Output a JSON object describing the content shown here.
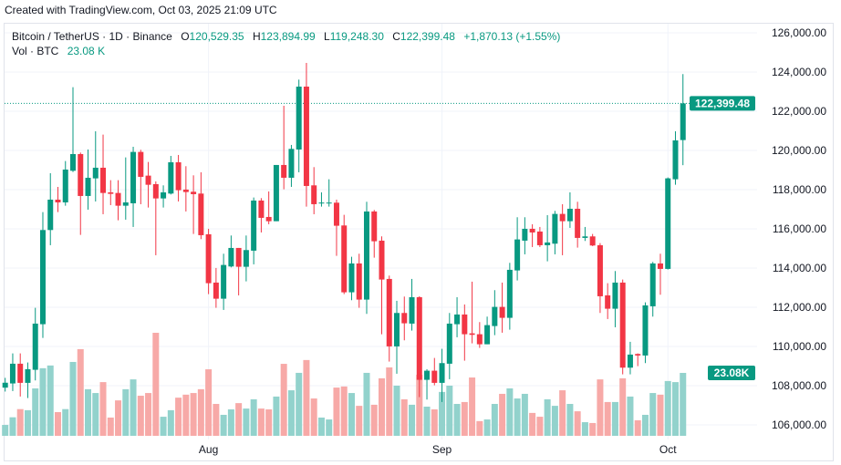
{
  "credit": "Created with TradingView.com, Oct 03, 2025 21:09 UTC",
  "legend": {
    "symbol": "Bitcoin / TetherUS · 1D · Binance",
    "o_label": "O",
    "o": "120,529.35",
    "h_label": "H",
    "h": "123,894.99",
    "l_label": "L",
    "l": "119,248.30",
    "c_label": "C",
    "c": "122,399.48",
    "change": "+1,870.13 (+1.55%)",
    "vol_label": "Vol · BTC",
    "vol": "23.08 K"
  },
  "colors": {
    "up": "#089981",
    "down": "#F23645",
    "up_vol": "#92d2cc",
    "down_vol": "#f7a9a7",
    "grid": "#f0f3fa"
  },
  "chart_data": {
    "type": "candlestick",
    "title": "",
    "ylim": [
      106000,
      126000
    ],
    "y_ticks": [
      "126,000.00",
      "124,000.00",
      "122,000.00",
      "120,000.00",
      "118,000.00",
      "116,000.00",
      "114,000.00",
      "112,000.00",
      "110,000.00",
      "108,000.00",
      "106,000.00"
    ],
    "y_tick_values": [
      126000,
      124000,
      122000,
      120000,
      118000,
      116000,
      114000,
      112000,
      110000,
      108000,
      106000
    ],
    "x_ticks": [
      {
        "label": "Aug",
        "date": "2025-08-01"
      },
      {
        "label": "Sep",
        "date": "2025-09-01"
      },
      {
        "label": "Oct",
        "date": "2025-10-01"
      }
    ],
    "last_price_label": "122,399.48",
    "last_volume_label": "23.08K",
    "grid": true,
    "columns": [
      "date",
      "open",
      "high",
      "low",
      "close",
      "volume_k"
    ],
    "candles": [
      [
        "2025-07-05",
        107900,
        108400,
        107700,
        108150,
        4.0
      ],
      [
        "2025-07-06",
        108113,
        109647,
        107725,
        109120,
        6.8
      ],
      [
        "2025-07-07",
        109120,
        109647,
        107447,
        108144,
        9.8
      ],
      [
        "2025-07-08",
        108144,
        109183,
        107369,
        108842,
        9.4
      ],
      [
        "2025-07-09",
        108810,
        111972,
        108268,
        111166,
        17.4
      ],
      [
        "2025-07-10",
        111136,
        116855,
        110438,
        115940,
        24.8
      ],
      [
        "2025-07-11",
        115940,
        118839,
        115165,
        117490,
        25.8
      ],
      [
        "2025-07-12",
        117490,
        118140,
        116855,
        117350,
        8.7
      ],
      [
        "2025-07-13",
        117350,
        119459,
        117180,
        119025,
        9.8
      ],
      [
        "2025-07-14",
        118963,
        123226,
        118900,
        119815,
        27.1
      ],
      [
        "2025-07-15",
        119815,
        119893,
        115692,
        117677,
        31.8
      ],
      [
        "2025-07-16",
        117677,
        120048,
        116979,
        118606,
        17.1
      ],
      [
        "2025-07-17",
        118575,
        120978,
        117397,
        119118,
        15.7
      ],
      [
        "2025-07-18",
        119118,
        120808,
        116746,
        117831,
        19.7
      ],
      [
        "2025-07-19",
        117862,
        118483,
        117211,
        117785,
        6.7
      ],
      [
        "2025-07-20",
        117831,
        118483,
        116437,
        117180,
        13.0
      ],
      [
        "2025-07-21",
        117180,
        119645,
        116468,
        117350,
        17.1
      ],
      [
        "2025-07-22",
        117304,
        120187,
        116096,
        119924,
        20.7
      ],
      [
        "2025-07-23",
        119924,
        120032,
        117257,
        118653,
        14.7
      ],
      [
        "2025-07-24",
        118715,
        119412,
        117087,
        118249,
        15.7
      ],
      [
        "2025-07-25",
        118281,
        118420,
        114654,
        117552,
        37.8
      ],
      [
        "2025-07-26",
        117552,
        118219,
        117087,
        117862,
        7.0
      ],
      [
        "2025-07-27",
        117800,
        119722,
        117754,
        119397,
        9.4
      ],
      [
        "2025-07-28",
        119397,
        119769,
        117397,
        117971,
        14.0
      ],
      [
        "2025-07-29",
        118002,
        119196,
        116886,
        117878,
        15.1
      ],
      [
        "2025-07-30",
        117893,
        118730,
        115739,
        117769,
        15.7
      ],
      [
        "2025-07-31",
        117800,
        118886,
        115475,
        115677,
        17.1
      ],
      [
        "2025-08-01",
        115724,
        116003,
        112670,
        113228,
        24.4
      ],
      [
        "2025-08-02",
        113259,
        114003,
        111972,
        112437,
        11.7
      ],
      [
        "2025-08-03",
        112437,
        114731,
        111864,
        114158,
        7.7
      ],
      [
        "2025-08-04",
        114080,
        115661,
        114034,
        115026,
        9.7
      ],
      [
        "2025-08-05",
        115026,
        115026,
        112607,
        114065,
        12.0
      ],
      [
        "2025-08-06",
        114065,
        115661,
        113321,
        114918,
        10.0
      ],
      [
        "2025-08-07",
        114886,
        117599,
        114189,
        117444,
        13.4
      ],
      [
        "2025-08-08",
        117444,
        117568,
        115816,
        116561,
        10.0
      ],
      [
        "2025-08-09",
        116607,
        117909,
        116235,
        116390,
        9.7
      ],
      [
        "2025-08-10",
        116390,
        119258,
        116390,
        119258,
        14.4
      ],
      [
        "2025-08-11",
        119258,
        122280,
        118017,
        118607,
        26.4
      ],
      [
        "2025-08-12",
        118607,
        120281,
        118141,
        120079,
        16.7
      ],
      [
        "2025-08-13",
        120048,
        123613,
        118886,
        123256,
        23.1
      ],
      [
        "2025-08-14",
        123256,
        124466,
        117134,
        118188,
        27.8
      ],
      [
        "2025-08-15",
        118219,
        119149,
        116746,
        117258,
        13.7
      ],
      [
        "2025-08-16",
        117330,
        117862,
        117134,
        117340,
        6.7
      ],
      [
        "2025-08-17",
        117330,
        118529,
        117134,
        117340,
        6.0
      ],
      [
        "2025-08-18",
        117335,
        117490,
        114623,
        116158,
        17.7
      ],
      [
        "2025-08-19",
        116173,
        116716,
        112670,
        112763,
        18.1
      ],
      [
        "2025-08-20",
        112763,
        114576,
        112360,
        114235,
        15.7
      ],
      [
        "2025-08-21",
        114235,
        114731,
        111972,
        112391,
        11.0
      ],
      [
        "2025-08-22",
        112391,
        117382,
        111662,
        116886,
        23.1
      ],
      [
        "2025-08-23",
        116886,
        116964,
        114530,
        115367,
        11.4
      ],
      [
        "2025-08-24",
        115398,
        115615,
        110624,
        113414,
        21.1
      ],
      [
        "2025-08-25",
        113445,
        113615,
        109229,
        110004,
        25.1
      ],
      [
        "2025-08-26",
        110004,
        112329,
        108609,
        111709,
        18.4
      ],
      [
        "2025-08-27",
        111709,
        112546,
        110314,
        111182,
        13.4
      ],
      [
        "2025-08-28",
        111166,
        113445,
        110810,
        112515,
        11.4
      ],
      [
        "2025-08-29",
        112515,
        112561,
        107416,
        108299,
        22.4
      ],
      [
        "2025-08-30",
        108299,
        108842,
        107292,
        108764,
        10.7
      ],
      [
        "2025-08-31",
        108764,
        109415,
        108020,
        108144,
        9.7
      ],
      [
        "2025-09-01",
        108144,
        109880,
        107168,
        109152,
        16.1
      ],
      [
        "2025-09-02",
        109120,
        111709,
        108330,
        111166,
        18.4
      ],
      [
        "2025-09-03",
        111135,
        112515,
        110469,
        111631,
        11.7
      ],
      [
        "2025-09-04",
        111631,
        112143,
        109275,
        110624,
        12.4
      ],
      [
        "2025-09-05",
        110670,
        113306,
        110159,
        110593,
        21.4
      ],
      [
        "2025-09-06",
        110624,
        111244,
        109927,
        110112,
        5.4
      ],
      [
        "2025-09-07",
        110112,
        111523,
        110112,
        111089,
        6.0
      ],
      [
        "2025-09-08",
        111042,
        112872,
        110577,
        112019,
        11.7
      ],
      [
        "2025-09-09",
        112019,
        113259,
        110702,
        111461,
        15.4
      ],
      [
        "2025-09-10",
        111461,
        114266,
        110856,
        113910,
        17.4
      ],
      [
        "2025-09-11",
        113879,
        116592,
        113368,
        115460,
        13.7
      ],
      [
        "2025-09-12",
        115398,
        116592,
        114700,
        116002,
        15.4
      ],
      [
        "2025-09-13",
        116002,
        116235,
        115072,
        115816,
        8.4
      ],
      [
        "2025-09-14",
        115863,
        116096,
        115072,
        115165,
        7.0
      ],
      [
        "2025-09-15",
        115165,
        116700,
        114344,
        115305,
        13.4
      ],
      [
        "2025-09-16",
        115243,
        116917,
        114700,
        116762,
        11.0
      ],
      [
        "2025-09-17",
        116762,
        117258,
        114654,
        116390,
        16.7
      ],
      [
        "2025-09-18",
        116390,
        117862,
        116049,
        117025,
        11.7
      ],
      [
        "2025-09-19",
        117025,
        117382,
        115042,
        115538,
        9.0
      ],
      [
        "2025-09-20",
        115538,
        116096,
        115383,
        115615,
        5.0
      ],
      [
        "2025-09-21",
        115615,
        115739,
        115119,
        115150,
        4.7
      ],
      [
        "2025-09-22",
        115165,
        115274,
        111709,
        112561,
        20.7
      ],
      [
        "2025-09-23",
        112608,
        113228,
        111399,
        111926,
        12.4
      ],
      [
        "2025-09-24",
        111926,
        113848,
        110980,
        113259,
        12.4
      ],
      [
        "2025-09-25",
        113259,
        113414,
        108578,
        108919,
        21.1
      ],
      [
        "2025-09-26",
        108919,
        110237,
        108578,
        109586,
        14.4
      ],
      [
        "2025-09-27",
        109617,
        109647,
        108996,
        109539,
        5.7
      ],
      [
        "2025-09-28",
        109539,
        112251,
        109152,
        112096,
        7.7
      ],
      [
        "2025-09-29",
        112050,
        114313,
        111523,
        114235,
        15.7
      ],
      [
        "2025-09-30",
        114235,
        114731,
        112639,
        113957,
        15.1
      ],
      [
        "2025-10-01",
        113957,
        118622,
        113926,
        118576,
        20.1
      ],
      [
        "2025-10-02",
        118529,
        120978,
        118250,
        120513,
        19.7
      ],
      [
        "2025-10-03",
        120529.35,
        123894.99,
        119248.3,
        122399.48,
        23.08
      ]
    ]
  }
}
